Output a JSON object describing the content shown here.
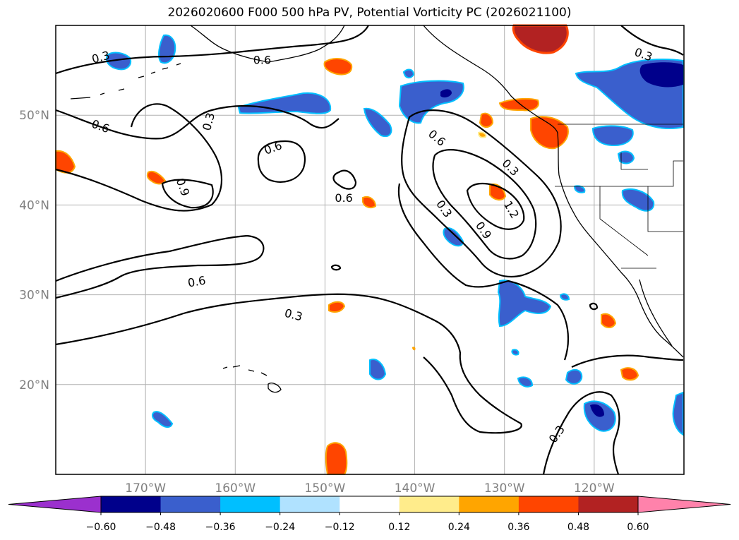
{
  "title": "2026020600 F000 500 hPa PV, Potential Vorticity PC (2026021100)",
  "map": {
    "lon_range": [
      -180,
      -110
    ],
    "lat_range": [
      10,
      60
    ],
    "lon_ticks": [
      {
        "lon": -170,
        "label": "170°W"
      },
      {
        "lon": -160,
        "label": "160°W"
      },
      {
        "lon": -150,
        "label": "150°W"
      },
      {
        "lon": -140,
        "label": "140°W"
      },
      {
        "lon": -130,
        "label": "130°W"
      },
      {
        "lon": -120,
        "label": "120°W"
      }
    ],
    "lat_ticks": [
      {
        "lat": 20,
        "label": "20°N"
      },
      {
        "lat": 30,
        "label": "30°N"
      },
      {
        "lat": 40,
        "label": "40°N"
      },
      {
        "lat": 50,
        "label": "50°N"
      }
    ],
    "contour_labels": [
      {
        "text": "0.3",
        "lon": -175,
        "lat": 56.5,
        "rot": -15
      },
      {
        "text": "0.6",
        "lon": -157,
        "lat": 56.2,
        "rot": 0
      },
      {
        "text": "0.3",
        "lon": -114.5,
        "lat": 56.8,
        "rot": 20
      },
      {
        "text": "0.6",
        "lon": -175,
        "lat": 48.8,
        "rot": 20
      },
      {
        "text": "0.3",
        "lon": -163,
        "lat": 49.3,
        "rot": -75
      },
      {
        "text": "0.6",
        "lon": -155.8,
        "lat": 46.4,
        "rot": -20
      },
      {
        "text": "0.9",
        "lon": -165.8,
        "lat": 42,
        "rot": 70
      },
      {
        "text": "0.6",
        "lon": -137.5,
        "lat": 47.5,
        "rot": 40
      },
      {
        "text": "0.3",
        "lon": -129.3,
        "lat": 44.2,
        "rot": 45
      },
      {
        "text": "0.6",
        "lon": -147.9,
        "lat": 40.8,
        "rot": 0
      },
      {
        "text": "0.3",
        "lon": -136.7,
        "lat": 39.6,
        "rot": 55
      },
      {
        "text": "0.9",
        "lon": -132.3,
        "lat": 37.2,
        "rot": 55
      },
      {
        "text": "1.2",
        "lon": -129.2,
        "lat": 39.5,
        "rot": 60
      },
      {
        "text": "0.6",
        "lon": -164.3,
        "lat": 31.5,
        "rot": -10
      },
      {
        "text": "0.3",
        "lon": -153.5,
        "lat": 27.8,
        "rot": 15
      },
      {
        "text": "0.3",
        "lon": -124.2,
        "lat": 14.5,
        "rot": -55
      }
    ]
  },
  "colorbar": {
    "ticks": [
      "−0.60",
      "−0.48",
      "−0.36",
      "−0.24",
      "−0.12",
      "0.12",
      "0.24",
      "0.36",
      "0.48",
      "0.60"
    ],
    "colors": {
      "under": "#9b30ce",
      "bins": [
        "#00008b",
        "#3a5fcd",
        "#00bfff",
        "#b0e2ff",
        "#ffffff",
        "#ffec8b",
        "#ffa500",
        "#ff4500",
        "#b22222"
      ],
      "over": "#ff82ab"
    }
  }
}
